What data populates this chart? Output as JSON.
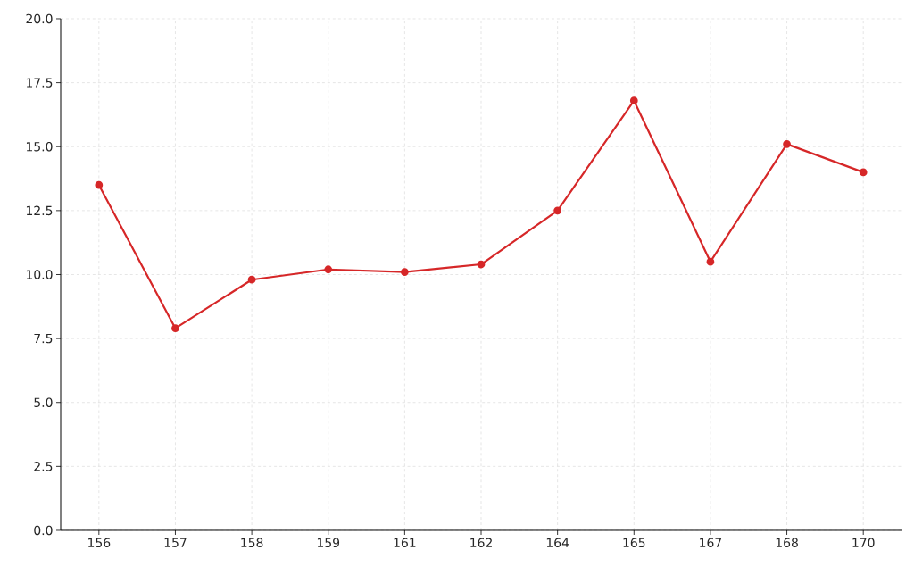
{
  "chart_data": {
    "type": "line",
    "categories": [
      "156",
      "157",
      "158",
      "159",
      "161",
      "162",
      "164",
      "165",
      "167",
      "168",
      "170"
    ],
    "values": [
      13.5,
      7.9,
      9.8,
      10.2,
      10.1,
      10.4,
      12.5,
      16.8,
      10.5,
      15.1,
      14.0
    ],
    "color": "#d62728",
    "marker": "circle",
    "line_style": "solid",
    "ylim": [
      0,
      20
    ],
    "yticks": [
      {
        "value": 0,
        "label": "0.0"
      },
      {
        "value": 2.5,
        "label": "2.5"
      },
      {
        "value": 5,
        "label": "5.0"
      },
      {
        "value": 7.5,
        "label": "7.5"
      },
      {
        "value": 10,
        "label": "10.0"
      },
      {
        "value": 12.5,
        "label": "12.5"
      },
      {
        "value": 15,
        "label": "15.0"
      },
      {
        "value": 17.5,
        "label": "17.5"
      },
      {
        "value": 20,
        "label": "20.0"
      }
    ],
    "grid": true
  }
}
